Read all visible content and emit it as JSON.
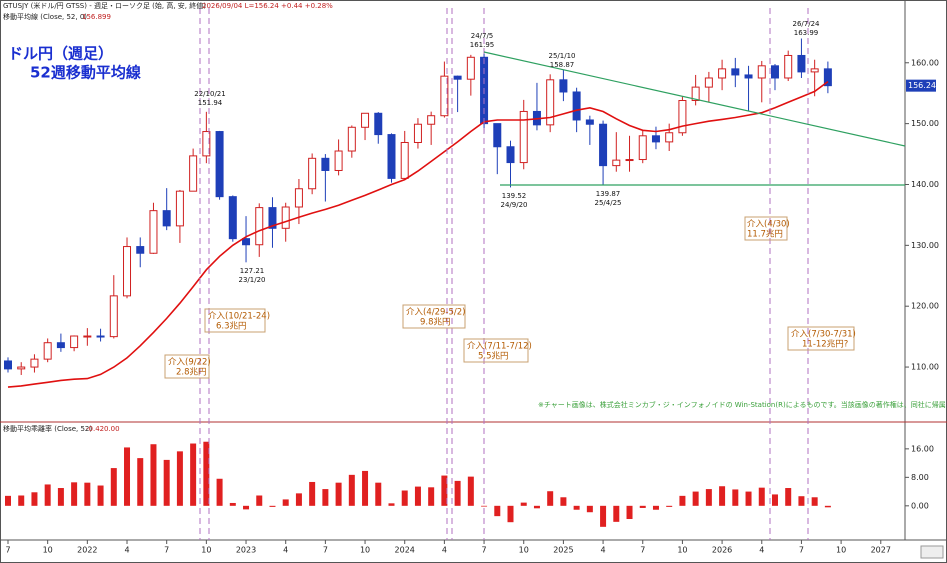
{
  "chart_data": [
    {
      "type": "candlestick",
      "header": "GTUSJY (米ドル/円 GTSS) - 週足・ローソク足 (始, 高, 安, 終値)",
      "header_quote": "2026/09/04 L=156.24 +0.44 +0.28%",
      "title": "ドル円（週足）",
      "subtitle": "52週移動平均線",
      "note": "※チャート画像は、株式会社ミンカブ・ジ・インフォノイドの Win-Station(R)によるものです。当該画像の著作権は、同社に帰属します。",
      "categories": [
        "7",
        null,
        null,
        "10",
        null,
        null,
        "2022",
        null,
        null,
        "4",
        null,
        null,
        "7",
        null,
        null,
        "10",
        null,
        null,
        "2023",
        null,
        null,
        "4",
        null,
        null,
        "7",
        null,
        null,
        "10",
        null,
        null,
        "2024",
        null,
        null,
        "4",
        null,
        null,
        "7",
        null,
        null,
        "10",
        null,
        null,
        "2025",
        null,
        null,
        "4",
        null,
        null,
        "7",
        null,
        null,
        "10",
        null,
        null,
        "2026",
        null,
        null,
        "4",
        null,
        null,
        "7",
        null,
        null,
        "10",
        null,
        null,
        "2027",
        null
      ],
      "open": [
        111.0,
        109.7,
        110.0,
        111.3,
        114.0,
        113.2,
        115.1,
        115.1,
        115.0,
        121.7,
        129.8,
        128.7,
        135.7,
        133.2,
        138.9,
        144.7,
        148.7,
        138.0,
        131.1,
        130.1,
        136.2,
        132.8,
        136.3,
        139.3,
        144.3,
        142.3,
        145.5,
        149.4,
        151.7,
        148.2,
        141.0,
        146.9,
        149.9,
        151.3,
        157.8,
        157.3,
        160.9,
        150.0,
        146.2,
        143.6,
        152.0,
        149.8,
        157.2,
        155.2,
        150.6,
        149.9,
        143.1,
        144.0,
        144.1,
        148.0,
        147.0,
        148.5,
        153.8,
        156.0,
        157.5,
        159.0,
        158.0,
        157.5,
        159.5,
        157.5,
        161.2,
        158.5,
        159.0,
        null,
        null,
        null,
        null,
        null
      ],
      "high": [
        111.6,
        110.8,
        112.1,
        114.7,
        115.5,
        115.2,
        116.4,
        116.3,
        125.1,
        131.3,
        131.3,
        137.0,
        139.4,
        139.1,
        145.9,
        151.94,
        148.8,
        138.2,
        134.8,
        136.9,
        137.9,
        137.0,
        140.9,
        145.1,
        145.0,
        147.4,
        149.7,
        151.7,
        151.9,
        148.4,
        148.8,
        150.9,
        151.97,
        160.2,
        157.9,
        161.3,
        161.95,
        150.0,
        147.2,
        153.9,
        156.7,
        158.1,
        158.87,
        155.9,
        151.3,
        150.5,
        148.6,
        148.0,
        149.0,
        149.5,
        150.0,
        154.5,
        158.0,
        158.5,
        160.5,
        160.8,
        159.5,
        160.3,
        159.8,
        162.0,
        163.99,
        160.5,
        160.2,
        null,
        null,
        null,
        null,
        null
      ],
      "low": [
        109.1,
        108.7,
        109.1,
        110.8,
        112.5,
        112.6,
        113.5,
        114.2,
        114.7,
        121.3,
        126.4,
        128.6,
        132.5,
        130.4,
        138.9,
        143.5,
        137.5,
        130.6,
        127.21,
        128.1,
        129.6,
        130.6,
        133.5,
        138.4,
        137.2,
        141.5,
        144.4,
        147.3,
        146.7,
        140.3,
        140.8,
        145.9,
        146.5,
        151.0,
        151.9,
        154.6,
        148.5,
        141.7,
        139.52,
        142.5,
        148.9,
        148.6,
        153.7,
        148.6,
        146.5,
        139.87,
        142.1,
        142.1,
        143.5,
        145.8,
        145.5,
        148.0,
        153.0,
        153.5,
        155.5,
        156.0,
        152.0,
        153.5,
        155.5,
        157.0,
        157.5,
        154.5,
        155.0,
        null,
        null,
        null,
        null,
        null
      ],
      "close": [
        109.7,
        110.0,
        111.3,
        114.0,
        113.2,
        115.1,
        115.1,
        115.0,
        121.7,
        129.8,
        128.7,
        135.7,
        133.2,
        138.9,
        144.7,
        148.7,
        138.0,
        131.1,
        130.1,
        136.2,
        132.8,
        136.3,
        139.3,
        144.3,
        142.3,
        145.5,
        149.4,
        151.7,
        148.2,
        141.0,
        146.9,
        149.9,
        151.3,
        157.8,
        157.3,
        160.9,
        150.0,
        146.2,
        143.6,
        152.0,
        149.8,
        157.2,
        155.2,
        150.6,
        149.9,
        143.1,
        144.0,
        144.1,
        148.0,
        147.0,
        148.5,
        153.8,
        156.0,
        157.5,
        159.0,
        158.0,
        157.5,
        159.5,
        157.5,
        161.2,
        158.5,
        159.0,
        156.24,
        null,
        null,
        null,
        null,
        null
      ],
      "up_color": "#d02020",
      "down_color": "#1e3fb8",
      "ma": {
        "label": "移動平均線 (Close, 52, 0)",
        "last": 156.899,
        "color": "#e01010",
        "values": [
          106.7,
          106.9,
          107.2,
          107.5,
          107.8,
          108.0,
          108.1,
          108.8,
          110.0,
          111.5,
          113.5,
          115.7,
          118.0,
          120.5,
          123.2,
          126.0,
          128.2,
          130.0,
          131.4,
          132.4,
          133.2,
          133.9,
          134.6,
          135.3,
          135.9,
          136.6,
          137.4,
          138.2,
          139.1,
          140.0,
          140.8,
          142.2,
          143.8,
          145.4,
          147.0,
          148.7,
          150.3,
          150.6,
          150.6,
          150.6,
          150.8,
          151.0,
          151.6,
          152.2,
          152.6,
          152.0,
          150.8,
          149.7,
          148.9,
          148.7,
          149.0,
          149.6,
          150.0,
          150.4,
          150.7,
          151.0,
          151.4,
          151.8,
          152.6,
          153.5,
          154.4,
          155.3,
          156.899,
          null,
          null,
          null,
          null,
          null
        ]
      },
      "last_price": 156.24,
      "ylim": [
        101.3,
        169.0
      ],
      "yticks": [
        {
          "value": 110,
          "label": "110.00"
        },
        {
          "value": 120,
          "label": "120.00"
        },
        {
          "value": 130,
          "label": "130.00"
        },
        {
          "value": 140,
          "label": "140.00"
        },
        {
          "value": 150,
          "label": "150.00"
        },
        {
          "value": 160,
          "label": "160.00"
        }
      ],
      "annotations": [
        {
          "date": "22/10/21",
          "price": 151.94
        },
        {
          "date": "23/1/20",
          "price": 127.21
        },
        {
          "date": "24/7/5",
          "price": 161.95
        },
        {
          "date": "24/9/20",
          "price": 139.52
        },
        {
          "date": "25/1/10",
          "price": 158.87
        },
        {
          "date": "25/4/25",
          "price": 139.87
        },
        {
          "date": "26/7/24",
          "price": 163.99
        }
      ],
      "interventions": [
        {
          "label": "介入(9/22)",
          "amount": "2.8兆円"
        },
        {
          "label": "介入(10/21-24)",
          "amount": "6.3兆円"
        },
        {
          "label": "介入(4/29-5/2)",
          "amount": "9.8兆円"
        },
        {
          "label": "介入(7/11-7/12)",
          "amount": "5.5兆円"
        },
        {
          "label": "介入(4/30)",
          "amount": "11.7兆円"
        },
        {
          "label": "介入(7/30-7/31)",
          "amount": "11-12兆円?"
        }
      ]
    },
    {
      "type": "bar",
      "title": "移動平均乖離率 (Close, 52)",
      "readout": [
        -0.42,
        {
          "value": 0,
          "label": "0.00"
        }
      ],
      "color": "#e02020",
      "values": [
        2.8,
        2.9,
        3.8,
        6.0,
        5.0,
        6.6,
        6.5,
        5.7,
        10.6,
        16.4,
        13.4,
        17.3,
        12.9,
        15.3,
        17.5,
        18.0,
        7.6,
        0.8,
        -1.0,
        2.9,
        -0.3,
        1.8,
        3.5,
        6.7,
        4.7,
        6.5,
        8.7,
        9.8,
        6.5,
        0.7,
        4.3,
        5.4,
        5.2,
        8.5,
        7.0,
        8.2,
        -0.2,
        -2.9,
        -4.6,
        0.9,
        -0.7,
        4.1,
        2.4,
        -1.1,
        -1.8,
        -5.9,
        -4.5,
        -3.7,
        -0.6,
        -1.1,
        -0.3,
        2.8,
        4.0,
        4.7,
        5.5,
        4.6,
        4.0,
        5.1,
        3.2,
        5.0,
        2.7,
        2.4,
        -0.42,
        null,
        null,
        null,
        null,
        null
      ],
      "ylim": [
        -9.6,
        22.7
      ],
      "yticks": [
        {
          "value": 0,
          "label": "0.00"
        },
        {
          "value": 8,
          "label": "8.00"
        },
        {
          "value": 16,
          "label": "16.00"
        }
      ]
    }
  ]
}
